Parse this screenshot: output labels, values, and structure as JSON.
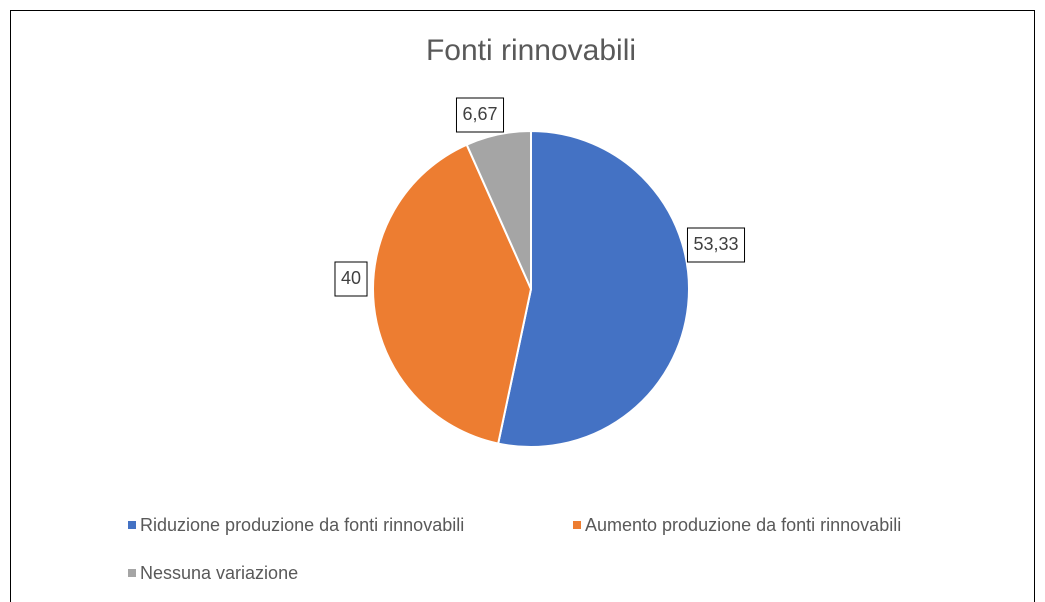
{
  "chart_data": {
    "type": "pie",
    "title": "Fonti rinnovabili",
    "categories": [
      "Riduzione produzione da fonti rinnovabili",
      "Aumento produzione da fonti rinnovabili",
      "Nessuna variazione"
    ],
    "values": [
      53.33,
      40,
      6.67
    ],
    "value_labels": [
      "53,33",
      "40",
      "6,67"
    ],
    "colors": [
      "#4472c4",
      "#ed7d31",
      "#a5a5a5"
    ],
    "legend": "bottom"
  }
}
